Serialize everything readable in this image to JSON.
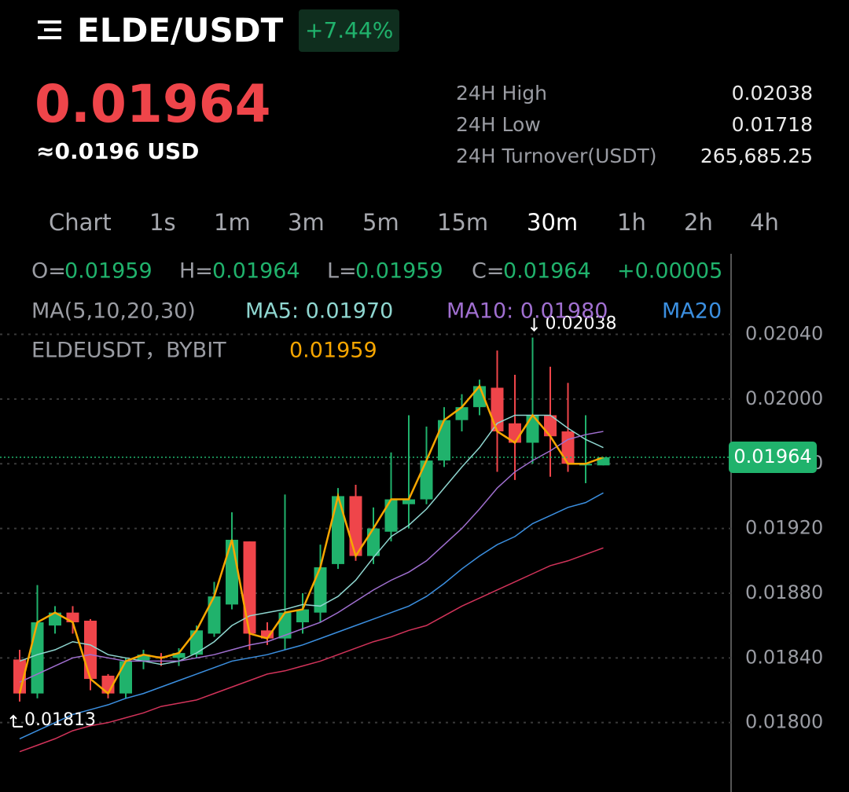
{
  "header": {
    "title": "ELDE/USDT",
    "change": "+7.44%"
  },
  "price": {
    "last": "0.01964",
    "usd": "≈0.0196 USD"
  },
  "stats": [
    {
      "label": "24H High",
      "value": "0.02038"
    },
    {
      "label": "24H Low",
      "value": "0.01718"
    },
    {
      "label": "24H Turnover(USDT)",
      "value": "265,685.25"
    }
  ],
  "tabs": [
    "Chart",
    "1s",
    "1m",
    "3m",
    "5m",
    "15m",
    "30m",
    "1h",
    "2h",
    "4h"
  ],
  "selected_tab": "30m",
  "chart_data": {
    "type": "candlestick",
    "legend_ohlc": [
      {
        "label": "O=",
        "value": "0.01959"
      },
      {
        "label": "H=",
        "value": "0.01964"
      },
      {
        "label": "L=",
        "value": "0.01959"
      },
      {
        "label": "C=",
        "value": "0.01964"
      },
      {
        "label": "",
        "value": "+0.00005"
      }
    ],
    "legend_ma": {
      "label": "MA(5,10,20,30)",
      "items": [
        "MA5: 0.01970",
        "MA10: 0.01980",
        "MA20"
      ]
    },
    "legend_symbol": {
      "label": "ELDEUSDT，BYBIT",
      "value": "0.01959"
    },
    "up_color": "#20b26c",
    "down_color": "#ef454a",
    "close_line_color": "#f7a600",
    "open": [
      0.01839,
      0.01818,
      0.0186,
      0.01868,
      0.01863,
      0.01829,
      0.01818,
      0.01838,
      0.01841,
      0.0184,
      0.01842,
      0.01855,
      0.01873,
      0.01912,
      0.01857,
      0.01852,
      0.01862,
      0.01868,
      0.01898,
      0.0194,
      0.01903,
      0.01918,
      0.01935,
      0.01938,
      0.01962,
      0.01987,
      0.01995,
      0.02007,
      0.01985,
      0.01973,
      0.0199,
      0.0198,
      0.01959,
      0.01959
    ],
    "high": [
      0.01845,
      0.01885,
      0.01872,
      0.01872,
      0.01864,
      0.0183,
      0.0184,
      0.01845,
      0.01843,
      0.01846,
      0.0186,
      0.01887,
      0.0193,
      0.01912,
      0.01862,
      0.01941,
      0.0188,
      0.0191,
      0.01945,
      0.01947,
      0.01933,
      0.01967,
      0.0199,
      0.01983,
      0.01995,
      0.02003,
      0.02012,
      0.0203,
      0.02015,
      0.02038,
      0.0202,
      0.0201,
      0.0199,
      0.01964
    ],
    "low": [
      0.01813,
      0.01815,
      0.01855,
      0.01855,
      0.0182,
      0.01815,
      0.01815,
      0.01833,
      0.01835,
      0.01835,
      0.0184,
      0.01853,
      0.0187,
      0.01845,
      0.01848,
      0.01845,
      0.01855,
      0.01862,
      0.01895,
      0.019,
      0.01898,
      0.01912,
      0.0192,
      0.01935,
      0.01958,
      0.0198,
      0.0199,
      0.01955,
      0.0195,
      0.0196,
      0.01952,
      0.01955,
      0.01948,
      0.01959
    ],
    "close": [
      0.01818,
      0.01862,
      0.01868,
      0.01862,
      0.01827,
      0.01818,
      0.01838,
      0.01842,
      0.0184,
      0.01843,
      0.01857,
      0.01878,
      0.01913,
      0.01855,
      0.01852,
      0.01868,
      0.0187,
      0.01896,
      0.0194,
      0.01903,
      0.0192,
      0.01938,
      0.01938,
      0.01962,
      0.01987,
      0.01995,
      0.02008,
      0.0198,
      0.01973,
      0.0199,
      0.01977,
      0.0196,
      0.0196,
      0.01964
    ],
    "series": [
      {
        "name": "MA5",
        "color": "#8fd6d0",
        "values": [
          0.01838,
          0.01842,
          0.01845,
          0.0185,
          0.01848,
          0.01842,
          0.0184,
          0.01838,
          0.01836,
          0.01838,
          0.01843,
          0.0185,
          0.0186,
          0.01866,
          0.01868,
          0.0187,
          0.01873,
          0.01872,
          0.01878,
          0.01888,
          0.01902,
          0.01915,
          0.01922,
          0.01932,
          0.01945,
          0.01958,
          0.0197,
          0.01985,
          0.0199,
          0.0199,
          0.0199,
          0.01982,
          0.01975,
          0.0197
        ]
      },
      {
        "name": "MA10",
        "color": "#a06fd0",
        "values": [
          0.01825,
          0.0183,
          0.01835,
          0.0184,
          0.01842,
          0.0184,
          0.01838,
          0.01838,
          0.01838,
          0.01838,
          0.0184,
          0.01842,
          0.01845,
          0.01848,
          0.0185,
          0.01854,
          0.01858,
          0.01862,
          0.01868,
          0.01875,
          0.01882,
          0.01888,
          0.01893,
          0.019,
          0.0191,
          0.0192,
          0.01932,
          0.01945,
          0.01955,
          0.01962,
          0.01968,
          0.01975,
          0.01978,
          0.0198
        ]
      },
      {
        "name": "MA20",
        "color": "#3b8fe0",
        "values": [
          0.0179,
          0.01795,
          0.018,
          0.01805,
          0.01808,
          0.01811,
          0.01815,
          0.01818,
          0.01822,
          0.01826,
          0.0183,
          0.01834,
          0.01838,
          0.0184,
          0.01842,
          0.01845,
          0.01848,
          0.01852,
          0.01856,
          0.0186,
          0.01864,
          0.01868,
          0.01872,
          0.01878,
          0.01886,
          0.01895,
          0.01903,
          0.0191,
          0.01915,
          0.01923,
          0.01928,
          0.01933,
          0.01936,
          0.01942
        ]
      },
      {
        "name": "MA30",
        "color": "#d2335a",
        "values": [
          0.01782,
          0.01786,
          0.0179,
          0.01795,
          0.01798,
          0.018,
          0.01803,
          0.01806,
          0.0181,
          0.01812,
          0.01814,
          0.01818,
          0.01822,
          0.01826,
          0.0183,
          0.01832,
          0.01835,
          0.01838,
          0.01842,
          0.01846,
          0.0185,
          0.01853,
          0.01857,
          0.0186,
          0.01866,
          0.01872,
          0.01877,
          0.01882,
          0.01887,
          0.01892,
          0.01897,
          0.019,
          0.01904,
          0.01908
        ]
      }
    ],
    "ylim": [
      0.017571,
      0.020898
    ],
    "yticks": [
      {
        "value": 0.0204,
        "label": "0.02040"
      },
      {
        "value": 0.02,
        "label": "0.02000"
      },
      {
        "value": 0.0196,
        "label": "0.01960"
      },
      {
        "value": 0.0192,
        "label": "0.01920"
      },
      {
        "value": 0.0188,
        "label": "0.01880"
      },
      {
        "value": 0.0184,
        "label": "0.01840"
      },
      {
        "value": 0.018,
        "label": "0.01800"
      }
    ],
    "grid": true,
    "last_price": 0.01964,
    "annotations": [
      {
        "text": "0.02038",
        "value": 0.02038,
        "index": 29
      },
      {
        "text": "0.01813",
        "value": 0.01813,
        "index": 0
      }
    ]
  }
}
